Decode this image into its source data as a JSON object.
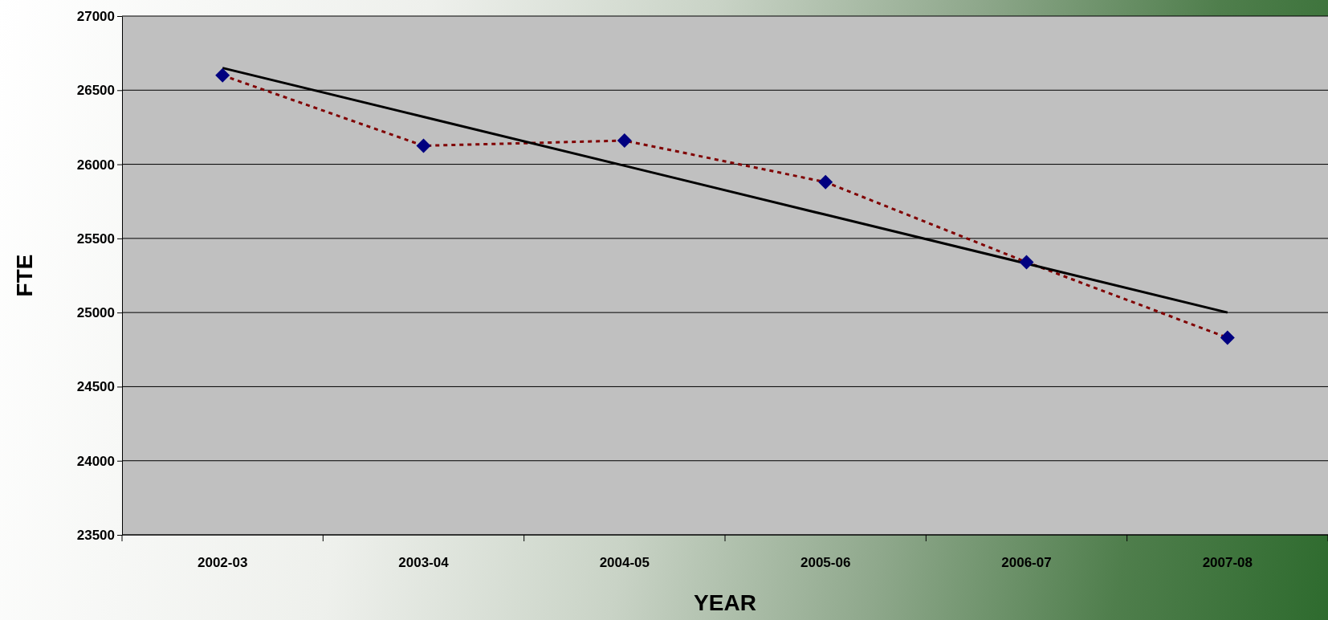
{
  "chart_data": {
    "type": "line",
    "xlabel": "YEAR",
    "ylabel": "FTE",
    "categories": [
      "2002-03",
      "2003-04",
      "2004-05",
      "2005-06",
      "2006-07",
      "2007-08"
    ],
    "series": [
      {
        "color": "#800000",
        "line_style": "dotted",
        "marker": "none",
        "values": [
          26600,
          26125,
          26160,
          25880,
          25340,
          24830
        ]
      },
      {
        "type": "scatter",
        "color": "#000080",
        "marker": "diamond",
        "values": [
          26600,
          26125,
          26160,
          25880,
          25340,
          24830
        ]
      },
      {
        "color": "#000000",
        "line_style": "solid",
        "marker": "none",
        "values": [
          26650,
          26320,
          25990,
          25660,
          25330,
          25000
        ]
      }
    ],
    "ylim": [
      23500,
      27000
    ],
    "yticks": [
      23500,
      24000,
      24500,
      25000,
      25500,
      26000,
      26500,
      27000
    ],
    "grid": "y"
  }
}
